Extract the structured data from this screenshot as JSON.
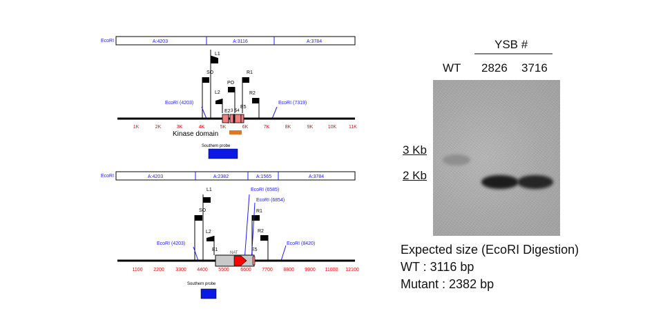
{
  "map1": {
    "fragments": [
      "A:4203",
      "A:3116",
      "A:3784"
    ],
    "enzyme": "EcoRI",
    "site_left": "EcoRI (4203)",
    "site_right": "EcoRI (7319)",
    "primers": {
      "l1": "L1",
      "so": "SO",
      "l2": "L2",
      "po": "PO",
      "r1": "R1",
      "r2": "R2"
    },
    "exons": {
      "e2": "E2",
      "e3": "3",
      "e4": "54",
      "e5": "E5"
    },
    "ticks": [
      "1K",
      "2K",
      "3K",
      "4K",
      "5K",
      "6K",
      "7K",
      "8K",
      "9K",
      "10K",
      "11K"
    ],
    "kinase": "Kinase domain",
    "probe": "Southern probe"
  },
  "map2": {
    "fragments": [
      "A:4203",
      "A:2382",
      "A:1565",
      "A:3784"
    ],
    "enzyme": "EcoRI",
    "site_left": "EcoRI (4203)",
    "site_mid1": "EcoRI (6585)",
    "site_mid2": "EcoRI (6854)",
    "site_right": "EcoRI (8420)",
    "primers": {
      "l1": "L1",
      "so": "SO",
      "l2": "L2",
      "r1": "R1",
      "r2": "R2"
    },
    "exons": {
      "e1": "E1",
      "nat": "NAT",
      "e5": "E5"
    },
    "ticks": [
      "1100",
      "2200",
      "3300",
      "4400",
      "5500",
      "6600",
      "7700",
      "8800",
      "9900",
      "11000",
      "12100"
    ],
    "probe": "Southern probe"
  },
  "blot": {
    "header": "YSB #",
    "lanes": [
      "WT",
      "2826",
      "3716"
    ],
    "markers": [
      "3 Kb",
      "2 Kb"
    ]
  },
  "result": {
    "line1": "Expected size (EcoRI Digestion)",
    "line2": "WT : 3116 bp",
    "line3": "Mutant : 2382 bp"
  },
  "colors": {
    "blue": "#1a1aff",
    "red": "#ff0000",
    "orange": "#e07820",
    "exon": "#f08080",
    "probe": "#0a19e6",
    "nat": "#c8c8c8"
  }
}
